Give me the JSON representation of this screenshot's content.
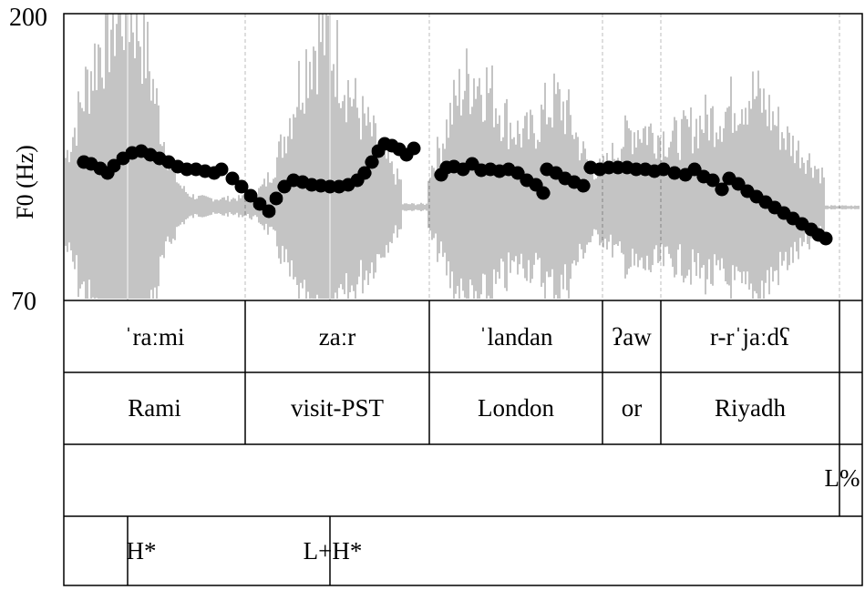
{
  "figure": {
    "y_axis": {
      "title": "F0 (Hz)",
      "top_label": "200",
      "bottom_label": "70",
      "range_hz": [
        70,
        200
      ]
    },
    "colors": {
      "waveform": "#8a8a8a",
      "pitch": "#000000",
      "frame": "#000000",
      "guide": "#bdbdbd"
    }
  },
  "tiers": {
    "transcription": [
      "ˈraːmi",
      "zaːr",
      "ˈlandan",
      "ʔaw",
      "r-rˈjaːdʕ"
    ],
    "gloss": [
      "Rami",
      "visit-PST",
      "London",
      "or",
      "Riyadh"
    ],
    "boundary_tone": [
      "L%"
    ],
    "pitch_accent": [
      "H*",
      "L+H*"
    ]
  },
  "chart_data": {
    "type": "scatter",
    "ylabel": "F0 (Hz)",
    "ylim": [
      70,
      200
    ],
    "x_unit": "fraction of utterance duration",
    "pitch_track": [
      [
        [
          0.03,
          125
        ],
        [
          0.04,
          124
        ],
        [
          0.055,
          120
        ],
        [
          0.07,
          124
        ],
        [
          0.09,
          126
        ],
        [
          0.11,
          128
        ],
        [
          0.13,
          127
        ],
        [
          0.15,
          125
        ],
        [
          0.17,
          124
        ],
        [
          0.19,
          123
        ],
        [
          0.21,
          122
        ],
        [
          0.23,
          122
        ],
        [
          0.25,
          121
        ],
        [
          0.27,
          122
        ]
      ],
      [
        [
          0.28,
          119
        ],
        [
          0.3,
          113
        ],
        [
          0.32,
          109
        ],
        [
          0.34,
          106
        ],
        [
          0.355,
          111
        ],
        [
          0.37,
          117
        ],
        [
          0.39,
          118
        ],
        [
          0.41,
          116
        ],
        [
          0.43,
          115
        ],
        [
          0.45,
          115
        ],
        [
          0.47,
          116
        ],
        [
          0.49,
          118
        ],
        [
          0.51,
          124
        ],
        [
          0.53,
          131
        ],
        [
          0.55,
          128
        ],
        [
          0.57,
          125
        ],
        [
          0.585,
          126
        ],
        [
          0.6,
          124
        ],
        [
          0.62,
          126
        ],
        [
          0.64,
          130
        ],
        [
          0.66,
          133
        ],
        [
          0.68,
          131
        ],
        [
          0.7,
          128
        ],
        [
          0.72,
          126
        ],
        [
          0.74,
          124
        ],
        [
          0.76,
          122
        ],
        [
          0.78,
          120
        ],
        [
          0.8,
          118
        ],
        [
          0.81,
          121
        ]
      ],
      [
        [
          0.47,
          124
        ],
        [
          0.49,
          122
        ],
        [
          0.51,
          120
        ]
      ]
    ]
  },
  "pitch_points": [
    [
      0.03,
      125
    ],
    [
      0.04,
      124
    ],
    [
      0.055,
      120
    ],
    [
      0.07,
      124
    ],
    [
      0.09,
      126
    ],
    [
      0.11,
      128
    ],
    [
      0.13,
      127
    ],
    [
      0.15,
      125
    ],
    [
      0.17,
      124
    ],
    [
      0.19,
      123
    ],
    [
      0.21,
      122
    ],
    [
      0.23,
      122
    ],
    [
      0.25,
      121
    ],
    [
      0.27,
      122
    ]
  ]
}
